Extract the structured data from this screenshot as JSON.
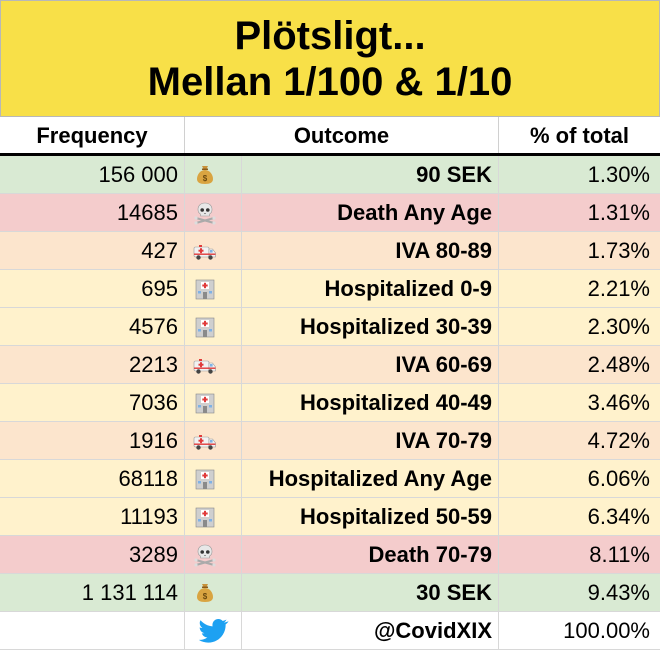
{
  "title": {
    "line1": "Plötsligt...",
    "line2": "Mellan 1/100 & 1/10"
  },
  "headers": {
    "frequency": "Frequency",
    "outcome": "Outcome",
    "percent": "% of total"
  },
  "colors": {
    "green": "#d9ead3",
    "red": "#f4cccc",
    "orange": "#fce5cd",
    "yellow": "#fff2cc",
    "white": "#ffffff",
    "title_bg": "#f8e048"
  },
  "rows": [
    {
      "frequency": "156 000",
      "icon": "money-bag-icon",
      "outcome": "90 SEK",
      "percent": "1.30%",
      "color": "green"
    },
    {
      "frequency": "14685",
      "icon": "skull-icon",
      "outcome": "Death Any Age",
      "percent": "1.31%",
      "color": "red"
    },
    {
      "frequency": "427",
      "icon": "ambulance-icon",
      "outcome": "IVA 80-89",
      "percent": "1.73%",
      "color": "orange"
    },
    {
      "frequency": "695",
      "icon": "hospital-icon",
      "outcome": "Hospitalized 0-9",
      "percent": "2.21%",
      "color": "yellow"
    },
    {
      "frequency": "4576",
      "icon": "hospital-icon",
      "outcome": "Hospitalized 30-39",
      "percent": "2.30%",
      "color": "yellow"
    },
    {
      "frequency": "2213",
      "icon": "ambulance-icon",
      "outcome": "IVA 60-69",
      "percent": "2.48%",
      "color": "orange"
    },
    {
      "frequency": "7036",
      "icon": "hospital-icon",
      "outcome": "Hospitalized 40-49",
      "percent": "3.46%",
      "color": "yellow"
    },
    {
      "frequency": "1916",
      "icon": "ambulance-icon",
      "outcome": "IVA 70-79",
      "percent": "4.72%",
      "color": "orange"
    },
    {
      "frequency": "68118",
      "icon": "hospital-icon",
      "outcome": "Hospitalized Any Age",
      "percent": "6.06%",
      "color": "yellow"
    },
    {
      "frequency": "11193",
      "icon": "hospital-icon",
      "outcome": "Hospitalized 50-59",
      "percent": "6.34%",
      "color": "yellow"
    },
    {
      "frequency": "3289",
      "icon": "skull-icon",
      "outcome": "Death 70-79",
      "percent": "8.11%",
      "color": "red"
    },
    {
      "frequency": "1 131 114",
      "icon": "money-bag-icon",
      "outcome": "30 SEK",
      "percent": "9.43%",
      "color": "green"
    },
    {
      "frequency": "",
      "icon": "twitter-bird-icon",
      "outcome": "@CovidXIX",
      "percent": "100.00%",
      "color": "white"
    }
  ]
}
